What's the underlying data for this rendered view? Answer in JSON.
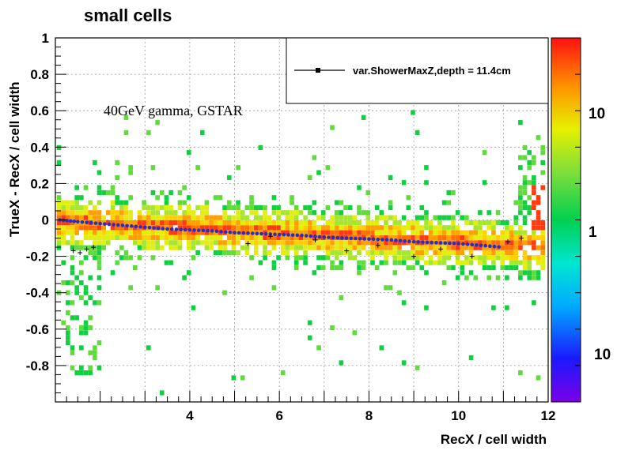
{
  "chart_data": {
    "type": "heatmap",
    "title": "small cells",
    "xlabel": "RecX / cell width",
    "ylabel": "TrueX - RecX / cell width",
    "annotation": "40GeV gamma, GSTAR",
    "xlim": [
      1,
      12
    ],
    "ylim": [
      -1,
      1
    ],
    "x_ticks": [
      4,
      6,
      8,
      10,
      12
    ],
    "y_ticks": [
      1,
      0.8,
      0.6,
      0.4,
      0.2,
      0,
      -0.2,
      -0.4,
      -0.6,
      -0.8
    ],
    "grid": true,
    "legend": {
      "placement": "top-right",
      "entries": [
        "var.ShowerMaxZ,depth = 11.4cm"
      ]
    },
    "colorbar": {
      "scale": "log",
      "labels": [
        "10",
        "1",
        "10"
      ]
    },
    "profile": {
      "name": "var.ShowerMaxZ,depth = 11.4cm",
      "x": [
        1.1,
        1.5,
        2.0,
        2.5,
        3.0,
        3.5,
        4.0,
        4.5,
        5.0,
        5.5,
        6.0,
        6.5,
        7.0,
        7.5,
        8.0,
        8.5,
        9.0,
        9.5,
        10.0,
        10.5,
        11.0
      ],
      "y": [
        0.0,
        -0.01,
        -0.02,
        -0.03,
        -0.04,
        -0.05,
        -0.055,
        -0.06,
        -0.07,
        -0.075,
        -0.08,
        -0.085,
        -0.095,
        -0.1,
        -0.105,
        -0.11,
        -0.12,
        -0.125,
        -0.13,
        -0.14,
        -0.15
      ]
    },
    "scatter_markers": {
      "x": [
        1.4,
        1.55,
        1.7,
        1.85,
        5.3,
        5.8,
        6.8,
        7.5,
        8.2,
        9.0,
        9.6,
        10.3,
        11.1,
        11.4
      ],
      "y": [
        -0.17,
        -0.18,
        -0.16,
        -0.15,
        -0.13,
        -0.09,
        -0.11,
        -0.17,
        -0.14,
        -0.2,
        -0.16,
        -0.2,
        -0.12,
        -0.1
      ]
    }
  }
}
